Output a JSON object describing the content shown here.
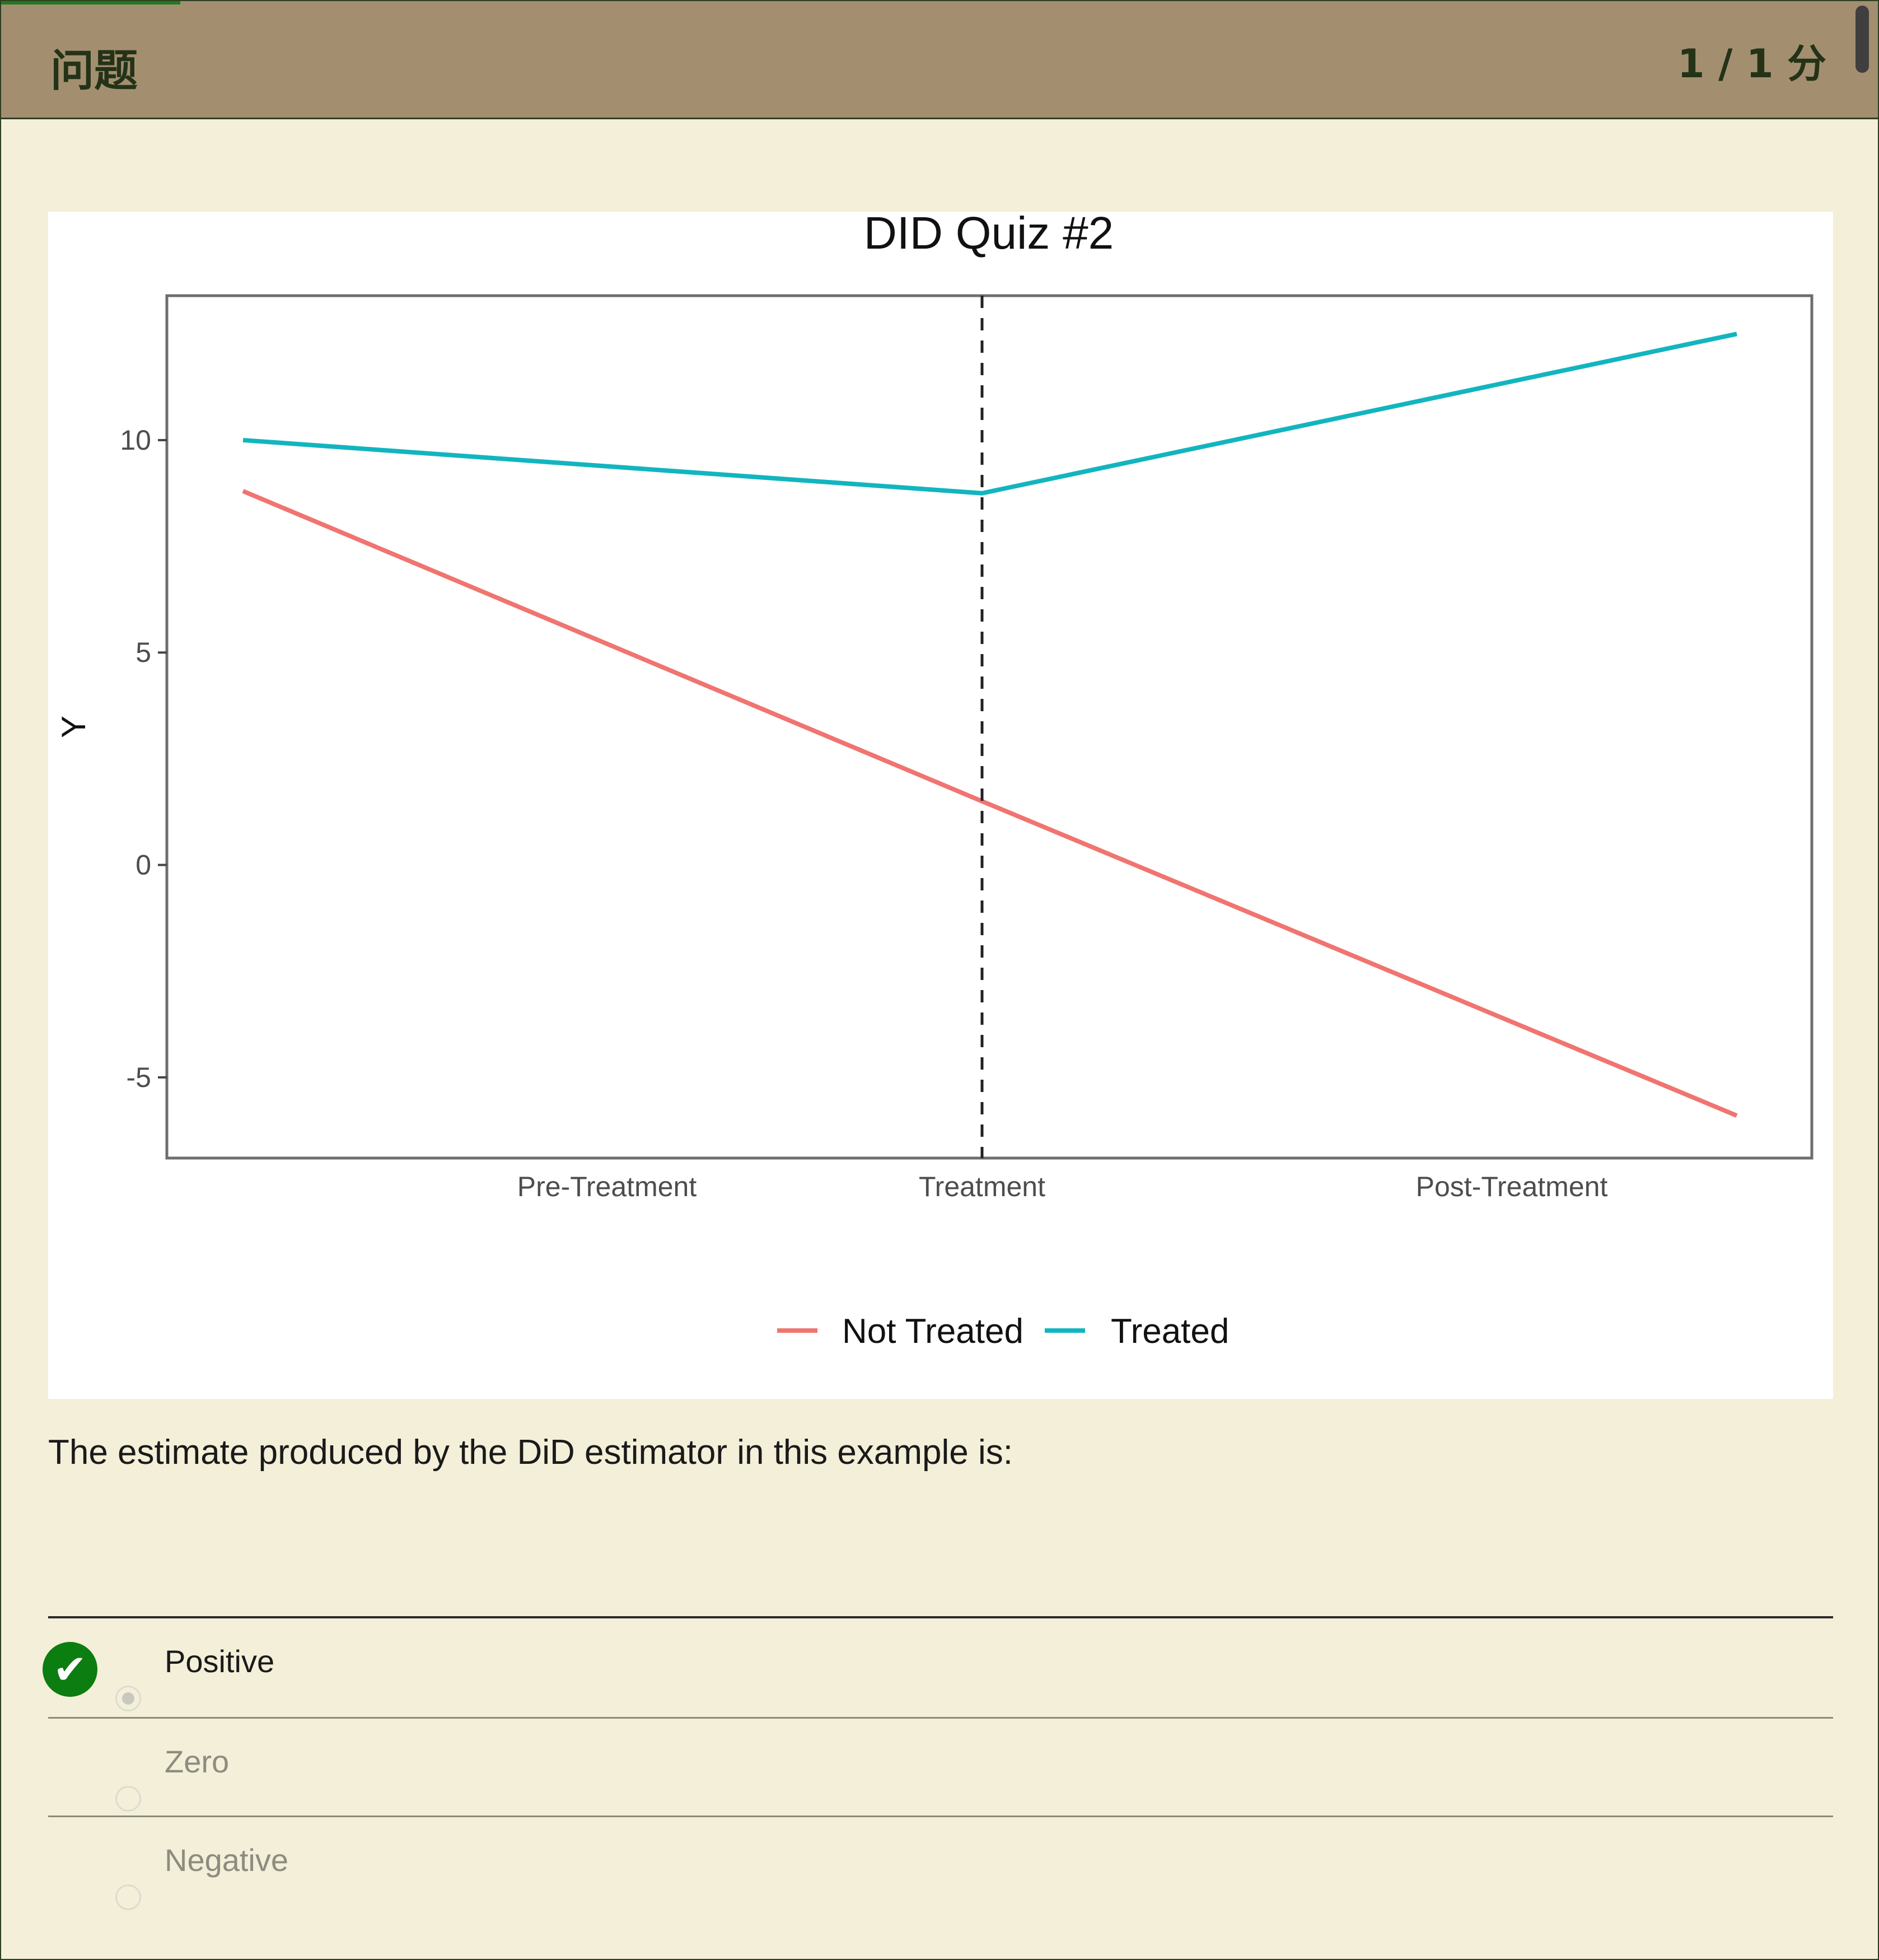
{
  "header": {
    "title": "问题",
    "score": "1 / 1 分"
  },
  "question": {
    "prompt": "The estimate produced by the DiD estimator in this example is:",
    "options": [
      {
        "label": "Positive",
        "selected": true,
        "correct": true
      },
      {
        "label": "Zero",
        "selected": false
      },
      {
        "label": "Negative",
        "selected": false
      }
    ]
  },
  "icons": {
    "correct": "checkmark-icon"
  },
  "colors": {
    "header_bg": "#a38f70",
    "page_bg": "#f4efd8",
    "correct_green": "#0c7d10"
  },
  "chart_data": {
    "type": "line",
    "title": "DID Quiz #2",
    "xlabel": "",
    "ylabel": "Y",
    "x_ticks": [
      "Pre-Treatment",
      "Treatment",
      "Post-Treatment"
    ],
    "y_ticks": [
      "10",
      "5",
      "0",
      "-5"
    ],
    "ylim": [
      -6.9,
      13.4
    ],
    "treatment_line": "Treatment",
    "series": [
      {
        "name": "Not Treated",
        "color": "#f07470",
        "points": [
          {
            "x": "start",
            "y": 8.8
          },
          {
            "x": "Treatment",
            "y": 1.5
          },
          {
            "x": "end",
            "y": -5.9
          }
        ]
      },
      {
        "name": "Treated",
        "color": "#12b5bf",
        "points": [
          {
            "x": "start",
            "y": 10.0
          },
          {
            "x": "Treatment",
            "y": 8.75
          },
          {
            "x": "end",
            "y": 12.5
          }
        ]
      }
    ],
    "legend": {
      "position": "bottom",
      "entries": [
        "Not Treated",
        "Treated"
      ]
    },
    "grid": false
  }
}
